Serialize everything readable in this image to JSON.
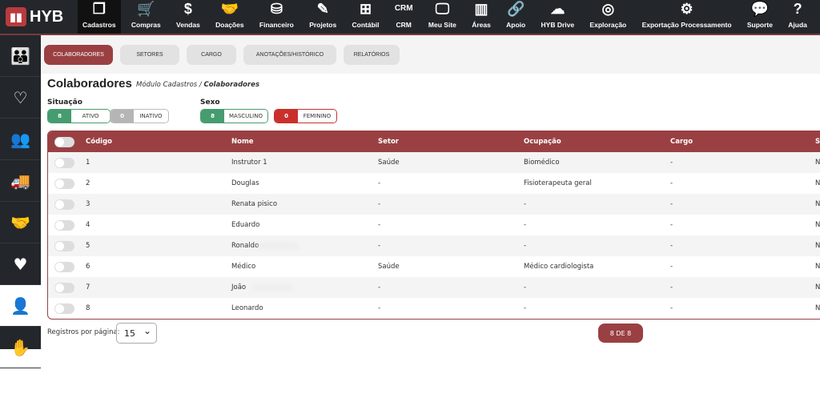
{
  "brand": {
    "name": "HYB"
  },
  "topnav": [
    {
      "label": "Cadastros",
      "icon": "copy-icon",
      "glyph": "❐",
      "active": true
    },
    {
      "label": "Compras",
      "icon": "cart-icon",
      "glyph": "🛒"
    },
    {
      "label": "Vendas",
      "icon": "dollar-icon",
      "glyph": "$"
    },
    {
      "label": "Doações",
      "icon": "handshake-icon",
      "glyph": "🤝"
    },
    {
      "label": "Financeiro",
      "icon": "coins-icon",
      "glyph": "⛁"
    },
    {
      "label": "Projetos",
      "icon": "pencil-icon",
      "glyph": "✎"
    },
    {
      "label": "Contábil",
      "icon": "calculator-icon",
      "glyph": "⊞"
    },
    {
      "label": "CRM",
      "icon": "crm-icon",
      "glyph": "CRM"
    },
    {
      "label": "Meu Site",
      "icon": "monitor-icon",
      "glyph": "🖵"
    },
    {
      "label": "Áreas",
      "icon": "areas-icon",
      "glyph": "▥"
    },
    {
      "label": "Apoio",
      "icon": "link-icon",
      "glyph": "🔗"
    },
    {
      "label": "HYB Drive",
      "icon": "cloud-upload-icon",
      "glyph": "☁"
    },
    {
      "label": "Exploração",
      "icon": "target-icon",
      "glyph": "◎"
    },
    {
      "label": "Exportação Processamento",
      "icon": "gears-icon",
      "glyph": "⚙"
    },
    {
      "label": "Suporte",
      "icon": "chat-icon",
      "glyph": "💬"
    },
    {
      "label": "Ajuda",
      "icon": "question-icon",
      "glyph": "?"
    }
  ],
  "sidebar": [
    {
      "icon": "family-icon",
      "glyph": "👪"
    },
    {
      "icon": "heart-hand-icon",
      "glyph": "♡"
    },
    {
      "icon": "people-icon",
      "glyph": "👥"
    },
    {
      "icon": "truck-icon",
      "glyph": "🚚"
    },
    {
      "icon": "handshake-icon",
      "glyph": "🤝"
    },
    {
      "icon": "care-icon",
      "glyph": "♥"
    },
    {
      "icon": "employee-icon",
      "glyph": "👤",
      "active": true
    },
    {
      "icon": "hand-card-icon",
      "glyph": "✋"
    }
  ],
  "tabs": [
    "COLABORADORES",
    "SETORES",
    "CARGO",
    "ANOTAÇÕES/HISTÓRICO",
    "RELATÓRIOS"
  ],
  "page": {
    "title": "Colaboradores",
    "crumb_module": "Módulo Cadastros /",
    "crumb_current": "Colaboradores"
  },
  "filters": {
    "situacao_label": "Situação",
    "sexo_label": "Sexo",
    "ativo": {
      "count": "8",
      "label": "ATIVO"
    },
    "inativo": {
      "count": "0",
      "label": "INATIVO"
    },
    "masculino": {
      "count": "8",
      "label": "MASCULINO"
    },
    "feminino": {
      "count": "0",
      "label": "FEMININO"
    }
  },
  "colors": {
    "accent": "#9a4043",
    "green": "#459c6f",
    "gray": "#b5b5b5",
    "red": "#c9302c"
  },
  "table": {
    "headers": [
      "Código",
      "Nome",
      "Setor",
      "Ocupação",
      "Cargo",
      "S"
    ],
    "rows": [
      [
        "1",
        "Instrutor 1",
        "Saúde",
        "Biomédico",
        "-",
        "N"
      ],
      [
        "2",
        "Douglas",
        "-",
        "Fisioterapeuta geral",
        "-",
        "N"
      ],
      [
        "3",
        "Renata pisico",
        "-",
        "-",
        "-",
        "N"
      ],
      [
        "4",
        "Eduardo",
        "-",
        "-",
        "-",
        "N"
      ],
      [
        "5",
        "Ronaldo",
        "-",
        "-",
        "-",
        "N"
      ],
      [
        "6",
        "Médico",
        "Saúde",
        "Médico cardiologista",
        "-",
        "N"
      ],
      [
        "7",
        "João",
        "-",
        "-",
        "-",
        "N"
      ],
      [
        "8",
        "Leonardo",
        "-",
        "-",
        "-",
        "N"
      ]
    ]
  },
  "footer": {
    "per_page_label": "Registros por página:",
    "per_page": "15",
    "pagination": "8 DE 8"
  }
}
